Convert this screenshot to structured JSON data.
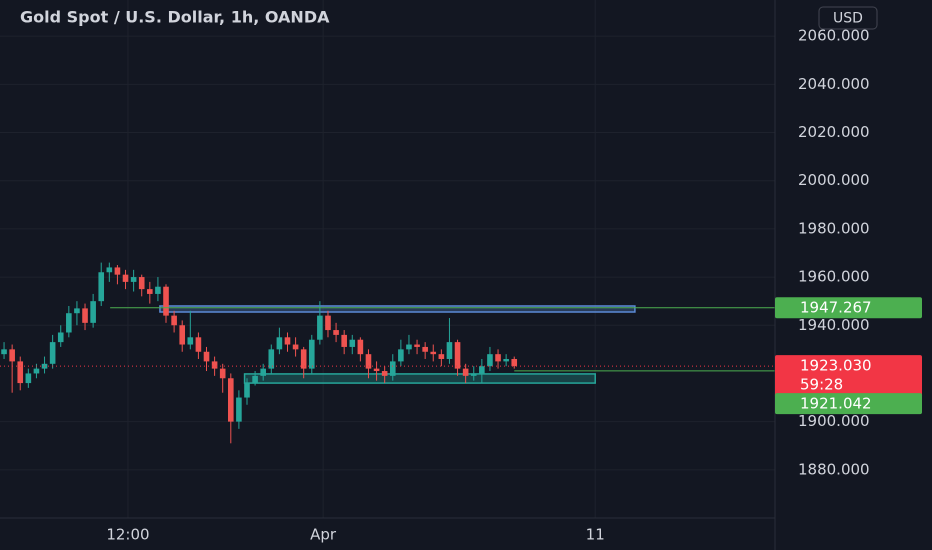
{
  "chart_data": {
    "type": "candlestick",
    "title": "Gold Spot / U.S. Dollar, 1h, OANDA",
    "currency": "USD",
    "up_color": "#26a69a",
    "down_color": "#ef5350",
    "grid": true,
    "x": [
      0,
      1,
      2,
      3,
      4,
      5,
      6,
      7,
      8,
      9,
      10,
      11,
      12,
      13,
      14,
      15,
      16,
      17,
      18,
      19,
      20,
      21,
      22,
      23,
      24,
      25,
      26,
      27,
      28,
      29,
      30,
      31,
      32,
      33,
      34,
      35,
      36,
      37,
      38,
      39,
      40,
      41,
      42,
      43,
      44,
      45,
      46,
      47,
      48,
      49,
      50,
      51,
      52,
      53,
      54,
      55,
      56,
      57,
      58,
      59,
      60,
      61,
      62,
      63
    ],
    "xlim": [
      -0.5,
      95.2
    ],
    "xticks": [
      {
        "value": 15.3,
        "label": "12:00"
      },
      {
        "value": 39.4,
        "label": "Apr"
      },
      {
        "value": 73,
        "label": "11"
      }
    ],
    "ylim": [
      1860,
      2075
    ],
    "yticks": [
      {
        "value": 1880,
        "label": "1880.000"
      },
      {
        "value": 1900,
        "label": "1900.000"
      },
      {
        "value": 1940,
        "label": "1940.000"
      },
      {
        "value": 1960,
        "label": "1960.000"
      },
      {
        "value": 1980,
        "label": "1980.000"
      },
      {
        "value": 2000,
        "label": "2000.000"
      },
      {
        "value": 2020,
        "label": "2020.000"
      },
      {
        "value": 2040,
        "label": "2040.000"
      },
      {
        "value": 2060,
        "label": "2060.000"
      }
    ],
    "series": [
      {
        "open": [
          1928,
          1930,
          1925,
          1916,
          1920,
          1922,
          1924,
          1933,
          1937,
          1945,
          1947,
          1941,
          1950,
          1962,
          1964,
          1961,
          1958,
          1960,
          1955,
          1953,
          1956,
          1944,
          1940,
          1932,
          1935,
          1929,
          1925,
          1922,
          1918,
          1900,
          1910,
          1916,
          1919,
          1922,
          1930,
          1935,
          1932,
          1930,
          1922,
          1934,
          1944,
          1938,
          1936,
          1931,
          1934,
          1928,
          1922,
          1921,
          1919,
          1925,
          1930,
          1932,
          1931,
          1929,
          1928,
          1926,
          1933,
          1922,
          1919,
          1920,
          1923,
          1928,
          1925,
          1926
        ],
        "high": [
          1933,
          1932,
          1927,
          1922,
          1924,
          1927,
          1936,
          1940,
          1948,
          1950,
          1949,
          1953,
          1966,
          1966,
          1965,
          1963,
          1963,
          1961,
          1958,
          1960,
          1957,
          1946,
          1942,
          1946,
          1937,
          1931,
          1927,
          1924,
          1920,
          1913,
          1918,
          1921,
          1924,
          1932,
          1939,
          1937,
          1935,
          1931,
          1936,
          1950,
          1946,
          1941,
          1938,
          1936,
          1935,
          1930,
          1925,
          1923,
          1928,
          1934,
          1936,
          1934,
          1933,
          1932,
          1930,
          1943,
          1934,
          1924,
          1923,
          1926,
          1931,
          1930,
          1928,
          1927
        ],
        "low": [
          1926,
          1912,
          1913,
          1914,
          1918,
          1920,
          1922,
          1931,
          1935,
          1940,
          1938,
          1939,
          1948,
          1958,
          1957,
          1955,
          1954,
          1952,
          1949,
          1950,
          1941,
          1937,
          1929,
          1930,
          1926,
          1921,
          1919,
          1912,
          1891,
          1897,
          1907,
          1915,
          1917,
          1920,
          1928,
          1929,
          1927,
          1918,
          1920,
          1932,
          1935,
          1933,
          1928,
          1928,
          1925,
          1918,
          1917,
          1916,
          1917,
          1923,
          1928,
          1928,
          1926,
          1925,
          1923,
          1924,
          1919,
          1916,
          1917,
          1916,
          1921,
          1922,
          1923,
          1922
        ],
        "close": [
          1930,
          1925,
          1916,
          1920,
          1922,
          1924,
          1933,
          1937,
          1945,
          1947,
          1941,
          1950,
          1962,
          1964,
          1961,
          1958,
          1960,
          1955,
          1953,
          1956,
          1944,
          1940,
          1932,
          1935,
          1929,
          1925,
          1922,
          1918,
          1900,
          1910,
          1916,
          1919,
          1922,
          1930,
          1935,
          1932,
          1930,
          1922,
          1934,
          1944,
          1938,
          1936,
          1931,
          1934,
          1928,
          1922,
          1921,
          1919,
          1925,
          1930,
          1932,
          1931,
          1929,
          1928,
          1926,
          1933,
          1922,
          1919,
          1920,
          1923,
          1928,
          1925,
          1926,
          1923.03
        ]
      }
    ],
    "zones": [
      {
        "low": 1945.5,
        "high": 1948,
        "x": [
          19.25,
          77.9
        ],
        "color": "#5b8bd6"
      },
      {
        "low": 1916,
        "high": 1919.8,
        "x": [
          29.7,
          73
        ],
        "color": "#26a69a"
      }
    ],
    "price_lines": [
      {
        "value": 1947.267,
        "color": "#4caf50",
        "from": 13.1
      },
      {
        "value": 1923.03,
        "label": "1923.030",
        "color": "#f23645",
        "from": -0.5,
        "dotted": true,
        "countdown": "59:28"
      },
      {
        "value": 1921.042,
        "color": "#4caf50",
        "from": 63
      }
    ]
  }
}
